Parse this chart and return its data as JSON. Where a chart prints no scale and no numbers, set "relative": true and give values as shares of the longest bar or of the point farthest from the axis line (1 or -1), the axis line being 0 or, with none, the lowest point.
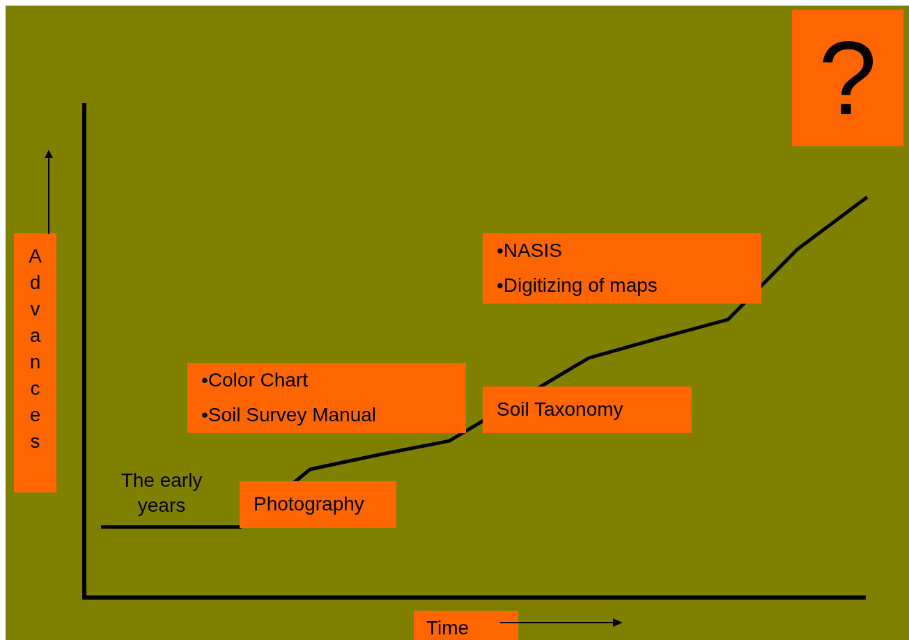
{
  "chart_data": {
    "type": "line",
    "relative": true,
    "xlabel": "Time",
    "ylabel": "Advances",
    "categories": [
      null,
      null,
      null,
      null,
      null,
      null,
      null,
      null,
      null,
      null,
      null,
      null
    ],
    "series": [
      {
        "color": "#000000",
        "values": [
          0.176,
          0.176,
          0.176,
          0.32,
          0.357,
          0.391,
          null,
          0.598,
          0.647,
          0.694,
          0.87,
          1
        ]
      }
    ],
    "annotations": [
      "?",
      "•NASIS",
      "•Digitizing of maps",
      "•Color Chart",
      "•Soil Survey Manual",
      "Soil Taxonomy",
      "The early years",
      "Photography"
    ],
    "marker": "none",
    "line_style": "solid",
    "legend": false,
    "grid": false,
    "tick_labels": false
  }
}
